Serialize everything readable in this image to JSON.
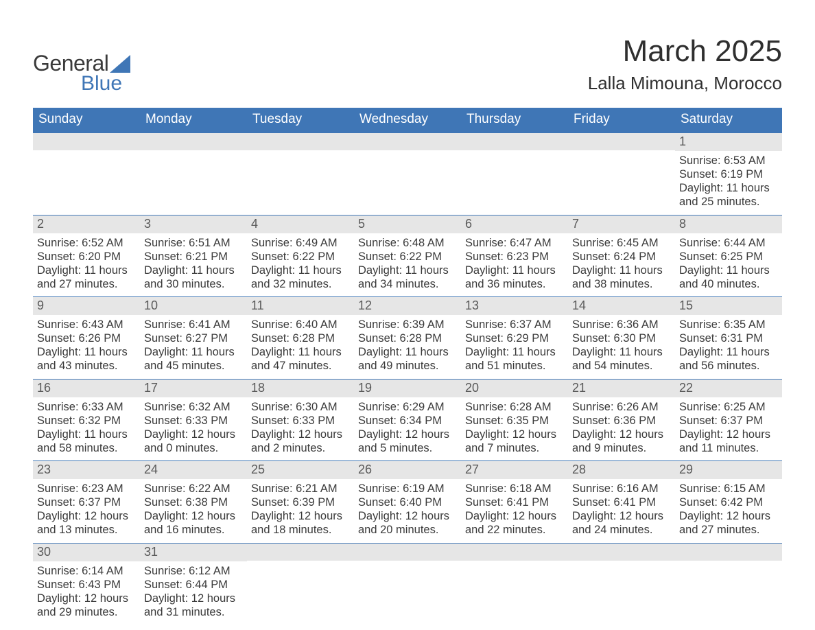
{
  "logo": {
    "text_general": "General",
    "text_blue": "Blue",
    "triangle_color": "#3f76b6"
  },
  "header": {
    "month_title": "March 2025",
    "location": "Lalla Mimouna, Morocco"
  },
  "calendar": {
    "header_bg": "#3f76b6",
    "header_fg": "#ffffff",
    "daynum_bg": "#e6e6e6",
    "row_border": "#3f76b6",
    "day_names": [
      "Sunday",
      "Monday",
      "Tuesday",
      "Wednesday",
      "Thursday",
      "Friday",
      "Saturday"
    ],
    "weeks": [
      [
        {
          "n": "",
          "sr": "",
          "ss": "",
          "dl1": "",
          "dl2": ""
        },
        {
          "n": "",
          "sr": "",
          "ss": "",
          "dl1": "",
          "dl2": ""
        },
        {
          "n": "",
          "sr": "",
          "ss": "",
          "dl1": "",
          "dl2": ""
        },
        {
          "n": "",
          "sr": "",
          "ss": "",
          "dl1": "",
          "dl2": ""
        },
        {
          "n": "",
          "sr": "",
          "ss": "",
          "dl1": "",
          "dl2": ""
        },
        {
          "n": "",
          "sr": "",
          "ss": "",
          "dl1": "",
          "dl2": ""
        },
        {
          "n": "1",
          "sr": "Sunrise: 6:53 AM",
          "ss": "Sunset: 6:19 PM",
          "dl1": "Daylight: 11 hours",
          "dl2": "and 25 minutes."
        }
      ],
      [
        {
          "n": "2",
          "sr": "Sunrise: 6:52 AM",
          "ss": "Sunset: 6:20 PM",
          "dl1": "Daylight: 11 hours",
          "dl2": "and 27 minutes."
        },
        {
          "n": "3",
          "sr": "Sunrise: 6:51 AM",
          "ss": "Sunset: 6:21 PM",
          "dl1": "Daylight: 11 hours",
          "dl2": "and 30 minutes."
        },
        {
          "n": "4",
          "sr": "Sunrise: 6:49 AM",
          "ss": "Sunset: 6:22 PM",
          "dl1": "Daylight: 11 hours",
          "dl2": "and 32 minutes."
        },
        {
          "n": "5",
          "sr": "Sunrise: 6:48 AM",
          "ss": "Sunset: 6:22 PM",
          "dl1": "Daylight: 11 hours",
          "dl2": "and 34 minutes."
        },
        {
          "n": "6",
          "sr": "Sunrise: 6:47 AM",
          "ss": "Sunset: 6:23 PM",
          "dl1": "Daylight: 11 hours",
          "dl2": "and 36 minutes."
        },
        {
          "n": "7",
          "sr": "Sunrise: 6:45 AM",
          "ss": "Sunset: 6:24 PM",
          "dl1": "Daylight: 11 hours",
          "dl2": "and 38 minutes."
        },
        {
          "n": "8",
          "sr": "Sunrise: 6:44 AM",
          "ss": "Sunset: 6:25 PM",
          "dl1": "Daylight: 11 hours",
          "dl2": "and 40 minutes."
        }
      ],
      [
        {
          "n": "9",
          "sr": "Sunrise: 6:43 AM",
          "ss": "Sunset: 6:26 PM",
          "dl1": "Daylight: 11 hours",
          "dl2": "and 43 minutes."
        },
        {
          "n": "10",
          "sr": "Sunrise: 6:41 AM",
          "ss": "Sunset: 6:27 PM",
          "dl1": "Daylight: 11 hours",
          "dl2": "and 45 minutes."
        },
        {
          "n": "11",
          "sr": "Sunrise: 6:40 AM",
          "ss": "Sunset: 6:28 PM",
          "dl1": "Daylight: 11 hours",
          "dl2": "and 47 minutes."
        },
        {
          "n": "12",
          "sr": "Sunrise: 6:39 AM",
          "ss": "Sunset: 6:28 PM",
          "dl1": "Daylight: 11 hours",
          "dl2": "and 49 minutes."
        },
        {
          "n": "13",
          "sr": "Sunrise: 6:37 AM",
          "ss": "Sunset: 6:29 PM",
          "dl1": "Daylight: 11 hours",
          "dl2": "and 51 minutes."
        },
        {
          "n": "14",
          "sr": "Sunrise: 6:36 AM",
          "ss": "Sunset: 6:30 PM",
          "dl1": "Daylight: 11 hours",
          "dl2": "and 54 minutes."
        },
        {
          "n": "15",
          "sr": "Sunrise: 6:35 AM",
          "ss": "Sunset: 6:31 PM",
          "dl1": "Daylight: 11 hours",
          "dl2": "and 56 minutes."
        }
      ],
      [
        {
          "n": "16",
          "sr": "Sunrise: 6:33 AM",
          "ss": "Sunset: 6:32 PM",
          "dl1": "Daylight: 11 hours",
          "dl2": "and 58 minutes."
        },
        {
          "n": "17",
          "sr": "Sunrise: 6:32 AM",
          "ss": "Sunset: 6:33 PM",
          "dl1": "Daylight: 12 hours",
          "dl2": "and 0 minutes."
        },
        {
          "n": "18",
          "sr": "Sunrise: 6:30 AM",
          "ss": "Sunset: 6:33 PM",
          "dl1": "Daylight: 12 hours",
          "dl2": "and 2 minutes."
        },
        {
          "n": "19",
          "sr": "Sunrise: 6:29 AM",
          "ss": "Sunset: 6:34 PM",
          "dl1": "Daylight: 12 hours",
          "dl2": "and 5 minutes."
        },
        {
          "n": "20",
          "sr": "Sunrise: 6:28 AM",
          "ss": "Sunset: 6:35 PM",
          "dl1": "Daylight: 12 hours",
          "dl2": "and 7 minutes."
        },
        {
          "n": "21",
          "sr": "Sunrise: 6:26 AM",
          "ss": "Sunset: 6:36 PM",
          "dl1": "Daylight: 12 hours",
          "dl2": "and 9 minutes."
        },
        {
          "n": "22",
          "sr": "Sunrise: 6:25 AM",
          "ss": "Sunset: 6:37 PM",
          "dl1": "Daylight: 12 hours",
          "dl2": "and 11 minutes."
        }
      ],
      [
        {
          "n": "23",
          "sr": "Sunrise: 6:23 AM",
          "ss": "Sunset: 6:37 PM",
          "dl1": "Daylight: 12 hours",
          "dl2": "and 13 minutes."
        },
        {
          "n": "24",
          "sr": "Sunrise: 6:22 AM",
          "ss": "Sunset: 6:38 PM",
          "dl1": "Daylight: 12 hours",
          "dl2": "and 16 minutes."
        },
        {
          "n": "25",
          "sr": "Sunrise: 6:21 AM",
          "ss": "Sunset: 6:39 PM",
          "dl1": "Daylight: 12 hours",
          "dl2": "and 18 minutes."
        },
        {
          "n": "26",
          "sr": "Sunrise: 6:19 AM",
          "ss": "Sunset: 6:40 PM",
          "dl1": "Daylight: 12 hours",
          "dl2": "and 20 minutes."
        },
        {
          "n": "27",
          "sr": "Sunrise: 6:18 AM",
          "ss": "Sunset: 6:41 PM",
          "dl1": "Daylight: 12 hours",
          "dl2": "and 22 minutes."
        },
        {
          "n": "28",
          "sr": "Sunrise: 6:16 AM",
          "ss": "Sunset: 6:41 PM",
          "dl1": "Daylight: 12 hours",
          "dl2": "and 24 minutes."
        },
        {
          "n": "29",
          "sr": "Sunrise: 6:15 AM",
          "ss": "Sunset: 6:42 PM",
          "dl1": "Daylight: 12 hours",
          "dl2": "and 27 minutes."
        }
      ],
      [
        {
          "n": "30",
          "sr": "Sunrise: 6:14 AM",
          "ss": "Sunset: 6:43 PM",
          "dl1": "Daylight: 12 hours",
          "dl2": "and 29 minutes."
        },
        {
          "n": "31",
          "sr": "Sunrise: 6:12 AM",
          "ss": "Sunset: 6:44 PM",
          "dl1": "Daylight: 12 hours",
          "dl2": "and 31 minutes."
        },
        {
          "n": "",
          "sr": "",
          "ss": "",
          "dl1": "",
          "dl2": ""
        },
        {
          "n": "",
          "sr": "",
          "ss": "",
          "dl1": "",
          "dl2": ""
        },
        {
          "n": "",
          "sr": "",
          "ss": "",
          "dl1": "",
          "dl2": ""
        },
        {
          "n": "",
          "sr": "",
          "ss": "",
          "dl1": "",
          "dl2": ""
        },
        {
          "n": "",
          "sr": "",
          "ss": "",
          "dl1": "",
          "dl2": ""
        }
      ]
    ]
  }
}
